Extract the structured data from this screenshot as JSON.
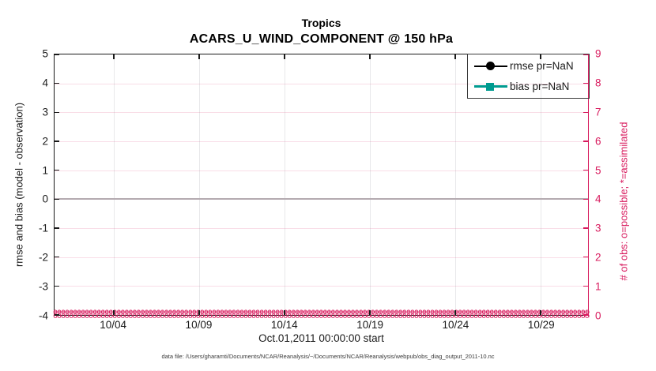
{
  "header": {
    "title": "Tropics",
    "subtitle": "ACARS_U_WIND_COMPONENT @ 150 hPa"
  },
  "legend": {
    "entries": [
      {
        "label": "rmse pr=NaN",
        "marker": "circle",
        "color": "#000000"
      },
      {
        "label": "bias pr=NaN",
        "marker": "square",
        "color": "#009b90"
      }
    ]
  },
  "obs_markers": {
    "possible_char": "o",
    "assimilated_char": "*",
    "repeat": 150
  },
  "footer": {
    "datafile_text": "data file: /Users/gharamti/Documents/NCAR/Reanalysis/~/Documents/NCAR/Reanalysis/webpub/obs_diag_output_2011-10.nc"
  },
  "colors": {
    "right_axis_pink": "#d81b5e",
    "bias_teal": "#009b90",
    "rmse_black": "#000000",
    "zero_line_gray": "#b4aab0",
    "h_grid_pink": "rgba(216,27,94,0.15)",
    "v_grid_gray": "rgba(110,110,125,0.16)"
  },
  "chart_data": {
    "type": "line",
    "title": "Tropics",
    "subtitle": "ACARS_U_WIND_COMPONENT @ 150 hPa",
    "xlabel": "Oct.01,2011 00:00:00 start",
    "ylabel_left": "rmse and bias (model - observation)",
    "ylabel_right": "# of obs: o=possible; *=assimilated",
    "x_ticks": [
      "10/04",
      "10/09",
      "10/14",
      "10/19",
      "10/24",
      "10/29"
    ],
    "x_range_note": "daily bins spanning Oct 01 2011 00:00 to end of Oct 2011",
    "ylim_left": [
      -4,
      5
    ],
    "yticks_left": [
      "5",
      "4",
      "3",
      "2",
      "1",
      "0",
      "-1",
      "-2",
      "-3",
      "-4"
    ],
    "ylim_right": [
      0,
      9
    ],
    "yticks_right": [
      "9",
      "8",
      "7",
      "6",
      "5",
      "4",
      "3",
      "2",
      "1",
      "0"
    ],
    "grid": true,
    "legend_position": "top-right",
    "zero_line_left_axis": 0,
    "series": [
      {
        "name": "rmse pr=NaN",
        "axis": "left",
        "color": "#000000",
        "marker": "circle",
        "values": "NaN for all bins (no curve drawn)"
      },
      {
        "name": "bias pr=NaN",
        "axis": "left",
        "color": "#009b90",
        "marker": "square",
        "values": "NaN for all bins (no curve drawn)"
      },
      {
        "name": "# of obs possible (o)",
        "axis": "right",
        "color": "#d81b5e",
        "marker": "o",
        "constant_value": 0,
        "note": "0 for every time bin across the whole month"
      },
      {
        "name": "# of obs assimilated (*)",
        "axis": "right",
        "color": "#d81b5e",
        "marker": "*",
        "constant_value": 0,
        "note": "0 for every time bin across the whole month"
      }
    ]
  }
}
